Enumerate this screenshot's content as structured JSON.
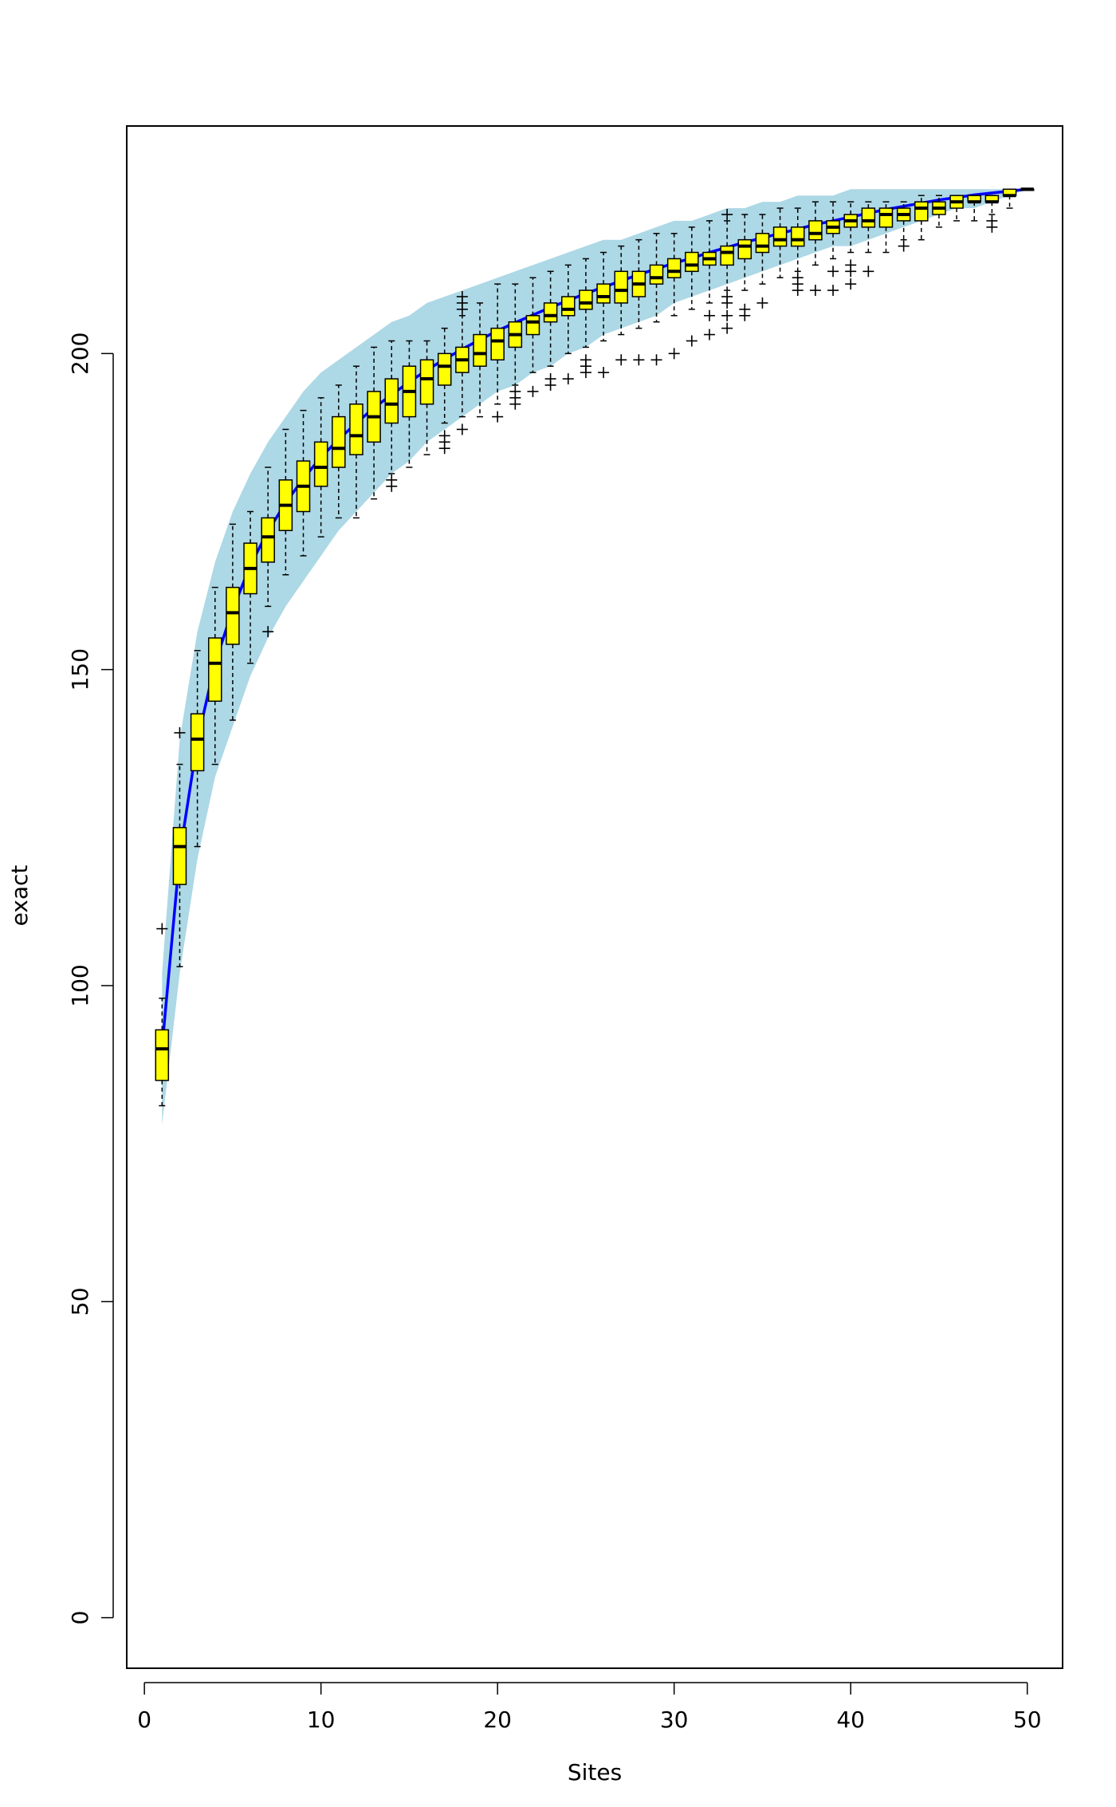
{
  "chart_data": {
    "type": "box",
    "xlabel": "Sites",
    "ylabel": "exact",
    "xlim": [
      -1,
      52
    ],
    "ylim": [
      -8,
      236
    ],
    "x_ticks": [
      0,
      10,
      20,
      30,
      40,
      50
    ],
    "y_ticks": [
      0,
      50,
      100,
      150,
      200
    ],
    "colors": {
      "box_fill": "#ffff00",
      "band_fill": "#add8e6",
      "line": "#0000ff",
      "median": "#000000",
      "whisker": "#000000"
    },
    "accumulation_curve": {
      "sites": [
        1,
        2,
        3,
        4,
        5,
        6,
        7,
        8,
        9,
        10,
        11,
        12,
        13,
        14,
        15,
        16,
        17,
        18,
        19,
        20,
        21,
        22,
        23,
        24,
        25,
        26,
        27,
        28,
        29,
        30,
        31,
        32,
        33,
        34,
        35,
        36,
        37,
        38,
        39,
        40,
        41,
        42,
        43,
        44,
        45,
        46,
        47,
        48,
        49,
        50
      ],
      "richness": [
        90.2,
        120.7,
        138.7,
        151.0,
        159.5,
        166.5,
        171.9,
        176.4,
        180.2,
        183.6,
        186.4,
        189.0,
        191.4,
        193.5,
        195.5,
        197.4,
        199.1,
        200.7,
        202.2,
        203.6,
        204.9,
        206.1,
        207.3,
        208.4,
        209.5,
        210.5,
        211.5,
        212.5,
        213.4,
        214.3,
        215.1,
        216.0,
        216.8,
        217.6,
        218.3,
        219.0,
        219.7,
        220.4,
        221.0,
        221.6,
        222.2,
        222.8,
        223.3,
        223.8,
        224.3,
        224.7,
        225.1,
        225.4,
        225.7,
        226.0
      ],
      "lower": [
        78,
        102,
        120,
        133,
        141,
        149,
        155,
        160,
        164,
        168,
        172,
        175,
        178,
        181,
        183,
        186,
        188,
        190,
        192,
        194,
        195,
        197,
        198,
        200,
        201,
        203,
        204,
        205,
        206,
        208,
        209,
        210,
        211,
        212,
        213,
        214,
        215,
        216,
        217,
        217,
        218,
        219,
        220,
        221,
        222,
        223,
        223,
        224,
        225,
        226
      ],
      "upper": [
        102,
        139,
        156,
        167,
        175,
        181,
        186,
        190,
        194,
        197,
        199,
        201,
        203,
        205,
        206,
        208,
        209,
        210,
        211,
        212,
        213,
        214,
        215,
        216,
        217,
        218,
        218,
        219,
        220,
        221,
        221,
        222,
        223,
        223,
        224,
        224,
        225,
        225,
        225,
        226,
        226,
        226,
        226,
        226,
        226,
        226,
        226,
        226,
        226,
        226
      ]
    },
    "boxes": [
      {
        "x": 1,
        "min": 81,
        "q1": 85,
        "median": 90,
        "q3": 93,
        "max": 98,
        "outliers": [
          109
        ]
      },
      {
        "x": 2,
        "min": 103,
        "q1": 116,
        "median": 122,
        "q3": 125,
        "max": 135,
        "outliers": [
          140
        ]
      },
      {
        "x": 3,
        "min": 122,
        "q1": 134,
        "median": 139,
        "q3": 143,
        "max": 153,
        "outliers": []
      },
      {
        "x": 4,
        "min": 135,
        "q1": 145,
        "median": 151,
        "q3": 155,
        "max": 163,
        "outliers": []
      },
      {
        "x": 5,
        "min": 142,
        "q1": 154,
        "median": 159,
        "q3": 163,
        "max": 173,
        "outliers": []
      },
      {
        "x": 6,
        "min": 151,
        "q1": 162,
        "median": 166,
        "q3": 170,
        "max": 175,
        "outliers": []
      },
      {
        "x": 7,
        "min": 160,
        "q1": 167,
        "median": 171,
        "q3": 174,
        "max": 182,
        "outliers": [
          156
        ]
      },
      {
        "x": 8,
        "min": 165,
        "q1": 172,
        "median": 176,
        "q3": 180,
        "max": 188,
        "outliers": []
      },
      {
        "x": 9,
        "min": 168,
        "q1": 175,
        "median": 179,
        "q3": 183,
        "max": 191,
        "outliers": []
      },
      {
        "x": 10,
        "min": 171,
        "q1": 179,
        "median": 182,
        "q3": 186,
        "max": 193,
        "outliers": []
      },
      {
        "x": 11,
        "min": 174,
        "q1": 182,
        "median": 185,
        "q3": 190,
        "max": 195,
        "outliers": []
      },
      {
        "x": 12,
        "min": 174,
        "q1": 184,
        "median": 187,
        "q3": 192,
        "max": 198,
        "outliers": []
      },
      {
        "x": 13,
        "min": 177,
        "q1": 186,
        "median": 190,
        "q3": 194,
        "max": 201,
        "outliers": []
      },
      {
        "x": 14,
        "min": 181,
        "q1": 189,
        "median": 192,
        "q3": 196,
        "max": 202,
        "outliers": [
          179,
          180
        ]
      },
      {
        "x": 15,
        "min": 182,
        "q1": 190,
        "median": 194,
        "q3": 198,
        "max": 202,
        "outliers": []
      },
      {
        "x": 16,
        "min": 184,
        "q1": 192,
        "median": 196,
        "q3": 199,
        "max": 202,
        "outliers": []
      },
      {
        "x": 17,
        "min": 189,
        "q1": 195,
        "median": 198,
        "q3": 200,
        "max": 204,
        "outliers": [
          185,
          186,
          187
        ]
      },
      {
        "x": 18,
        "min": 190,
        "q1": 197,
        "median": 199,
        "q3": 201,
        "max": 206,
        "outliers": [
          188,
          207,
          208,
          209
        ]
      },
      {
        "x": 19,
        "min": 190,
        "q1": 198,
        "median": 200,
        "q3": 203,
        "max": 208,
        "outliers": []
      },
      {
        "x": 20,
        "min": 192,
        "q1": 199,
        "median": 202,
        "q3": 204,
        "max": 211,
        "outliers": [
          190
        ]
      },
      {
        "x": 21,
        "min": 195,
        "q1": 201,
        "median": 203,
        "q3": 205,
        "max": 211,
        "outliers": [
          192,
          193,
          194
        ]
      },
      {
        "x": 22,
        "min": 197,
        "q1": 203,
        "median": 205,
        "q3": 206,
        "max": 212,
        "outliers": [
          194
        ]
      },
      {
        "x": 23,
        "min": 198,
        "q1": 205,
        "median": 206,
        "q3": 208,
        "max": 213,
        "outliers": [
          195,
          196
        ]
      },
      {
        "x": 24,
        "min": 200,
        "q1": 206,
        "median": 207,
        "q3": 209,
        "max": 214,
        "outliers": [
          196
        ]
      },
      {
        "x": 25,
        "min": 201,
        "q1": 207,
        "median": 208,
        "q3": 210,
        "max": 215,
        "outliers": [
          197,
          198,
          199
        ]
      },
      {
        "x": 26,
        "min": 202,
        "q1": 208,
        "median": 209,
        "q3": 211,
        "max": 216,
        "outliers": [
          197
        ]
      },
      {
        "x": 27,
        "min": 203,
        "q1": 208,
        "median": 210,
        "q3": 213,
        "max": 217,
        "outliers": [
          199
        ]
      },
      {
        "x": 28,
        "min": 204,
        "q1": 209,
        "median": 211,
        "q3": 213,
        "max": 218,
        "outliers": [
          199
        ]
      },
      {
        "x": 29,
        "min": 205,
        "q1": 211,
        "median": 212,
        "q3": 214,
        "max": 219,
        "outliers": [
          199
        ]
      },
      {
        "x": 30,
        "min": 206,
        "q1": 212,
        "median": 213,
        "q3": 215,
        "max": 219,
        "outliers": [
          200
        ]
      },
      {
        "x": 31,
        "min": 207,
        "q1": 213,
        "median": 214,
        "q3": 216,
        "max": 220,
        "outliers": [
          202
        ]
      },
      {
        "x": 32,
        "min": 208,
        "q1": 214,
        "median": 215,
        "q3": 216,
        "max": 221,
        "outliers": [
          203,
          206
        ]
      },
      {
        "x": 33,
        "min": 210,
        "q1": 214,
        "median": 216,
        "q3": 217,
        "max": 221,
        "outliers": [
          204,
          206,
          208,
          209,
          222
        ]
      },
      {
        "x": 34,
        "min": 210,
        "q1": 215,
        "median": 217,
        "q3": 218,
        "max": 222,
        "outliers": [
          206,
          207
        ]
      },
      {
        "x": 35,
        "min": 211,
        "q1": 216,
        "median": 217,
        "q3": 219,
        "max": 222,
        "outliers": [
          208
        ]
      },
      {
        "x": 36,
        "min": 212,
        "q1": 217,
        "median": 218,
        "q3": 220,
        "max": 223,
        "outliers": []
      },
      {
        "x": 37,
        "min": 213,
        "q1": 217,
        "median": 218,
        "q3": 220,
        "max": 223,
        "outliers": [
          210,
          211,
          212
        ]
      },
      {
        "x": 38,
        "min": 214,
        "q1": 218,
        "median": 219,
        "q3": 221,
        "max": 224,
        "outliers": [
          210
        ]
      },
      {
        "x": 39,
        "min": 215,
        "q1": 219,
        "median": 220,
        "q3": 221,
        "max": 224,
        "outliers": [
          210,
          213
        ]
      },
      {
        "x": 40,
        "min": 216,
        "q1": 220,
        "median": 221,
        "q3": 222,
        "max": 224,
        "outliers": [
          211,
          213,
          214
        ]
      },
      {
        "x": 41,
        "min": 216,
        "q1": 220,
        "median": 221,
        "q3": 223,
        "max": 224,
        "outliers": [
          213
        ]
      },
      {
        "x": 42,
        "min": 216,
        "q1": 220,
        "median": 222,
        "q3": 223,
        "max": 224,
        "outliers": []
      },
      {
        "x": 43,
        "min": 218,
        "q1": 221,
        "median": 222,
        "q3": 223,
        "max": 224,
        "outliers": [
          217
        ]
      },
      {
        "x": 44,
        "min": 218,
        "q1": 221,
        "median": 223,
        "q3": 224,
        "max": 225,
        "outliers": []
      },
      {
        "x": 45,
        "min": 220,
        "q1": 222,
        "median": 223,
        "q3": 224,
        "max": 225,
        "outliers": []
      },
      {
        "x": 46,
        "min": 221,
        "q1": 223,
        "median": 224,
        "q3": 225,
        "max": 225,
        "outliers": []
      },
      {
        "x": 47,
        "min": 221,
        "q1": 224,
        "median": 224,
        "q3": 225,
        "max": 225,
        "outliers": []
      },
      {
        "x": 48,
        "min": 222,
        "q1": 224,
        "median": 224,
        "q3": 225,
        "max": 225,
        "outliers": [
          220,
          221
        ]
      },
      {
        "x": 49,
        "min": 223,
        "q1": 225,
        "median": 225,
        "q3": 226,
        "max": 226,
        "outliers": []
      },
      {
        "x": 50,
        "min": 226,
        "q1": 226,
        "median": 226,
        "q3": 226,
        "max": 226,
        "outliers": []
      }
    ]
  }
}
